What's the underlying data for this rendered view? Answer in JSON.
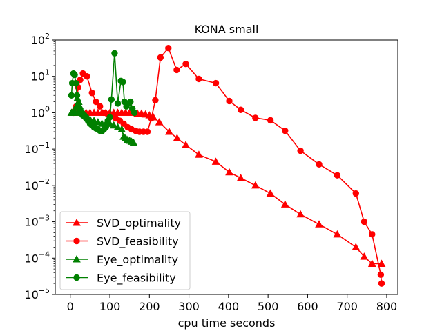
{
  "chart_data": {
    "type": "line",
    "title": "KONA small",
    "xlabel": "cpu time seconds",
    "ylabel": "",
    "yscale": "log",
    "xlim": [
      -38,
      828
    ],
    "ylim": [
      1e-05,
      100
    ],
    "xticks": [
      0,
      100,
      200,
      300,
      400,
      500,
      600,
      700,
      800
    ],
    "xtick_labels": [
      "0",
      "100",
      "200",
      "300",
      "400",
      "500",
      "600",
      "700",
      "800"
    ],
    "yticks": [
      1e-05,
      0.0001,
      0.001,
      0.01,
      0.1,
      1,
      10,
      100
    ],
    "ytick_labels": [
      {
        "base": "10",
        "exp": "−5"
      },
      {
        "base": "10",
        "exp": "−4"
      },
      {
        "base": "10",
        "exp": "−3"
      },
      {
        "base": "10",
        "exp": "−2"
      },
      {
        "base": "10",
        "exp": "−1"
      },
      {
        "base": "10",
        "exp": "0"
      },
      {
        "base": "10",
        "exp": "1"
      },
      {
        "base": "10",
        "exp": "2"
      }
    ],
    "grid": false,
    "legend_position": "lower-left",
    "series": [
      {
        "name": "SVD_optimality",
        "color": "#ff0000",
        "marker": "triangle",
        "points": [
          [
            5,
            1.0
          ],
          [
            10,
            1.0
          ],
          [
            15,
            1.0
          ],
          [
            20,
            1.0
          ],
          [
            30,
            1.0
          ],
          [
            40,
            1.0
          ],
          [
            50,
            1.0
          ],
          [
            60,
            1.0
          ],
          [
            70,
            1.0
          ],
          [
            80,
            1.0
          ],
          [
            90,
            1.0
          ],
          [
            100,
            1.0
          ],
          [
            110,
            1.0
          ],
          [
            120,
            1.0
          ],
          [
            130,
            1.0
          ],
          [
            140,
            1.0
          ],
          [
            150,
            1.0
          ],
          [
            160,
            1.0
          ],
          [
            170,
            0.95
          ],
          [
            180,
            0.95
          ],
          [
            190,
            0.9
          ],
          [
            200,
            0.85
          ],
          [
            210,
            0.75
          ],
          [
            225,
            0.55
          ],
          [
            250,
            0.3
          ],
          [
            270,
            0.2
          ],
          [
            292,
            0.13
          ],
          [
            325,
            0.07
          ],
          [
            368,
            0.045
          ],
          [
            402,
            0.023
          ],
          [
            431,
            0.016
          ],
          [
            468,
            0.01
          ],
          [
            506,
            0.006
          ],
          [
            543,
            0.003
          ],
          [
            582,
            0.0016
          ],
          [
            629,
            0.00085
          ],
          [
            675,
            0.00045
          ],
          [
            722,
            0.0002
          ],
          [
            743,
            0.00011
          ],
          [
            763,
            7e-05
          ],
          [
            787,
            7e-05
          ]
        ]
      },
      {
        "name": "SVD_feasibility",
        "color": "#ff0000",
        "marker": "circle",
        "points": [
          [
            8,
            1.0
          ],
          [
            15,
            1.5
          ],
          [
            20,
            5.0
          ],
          [
            25,
            8.0
          ],
          [
            32,
            12.0
          ],
          [
            42,
            10.0
          ],
          [
            55,
            3.5
          ],
          [
            65,
            2.0
          ],
          [
            75,
            1.5
          ],
          [
            85,
            1.0
          ],
          [
            95,
            0.9
          ],
          [
            105,
            0.8
          ],
          [
            115,
            0.7
          ],
          [
            125,
            0.6
          ],
          [
            135,
            0.5
          ],
          [
            145,
            0.4
          ],
          [
            155,
            0.35
          ],
          [
            165,
            0.32
          ],
          [
            175,
            0.3
          ],
          [
            185,
            0.3
          ],
          [
            195,
            0.3
          ],
          [
            205,
            0.7
          ],
          [
            215,
            2.2
          ],
          [
            228,
            33.0
          ],
          [
            248,
            60.0
          ],
          [
            269,
            15.0
          ],
          [
            292,
            22.0
          ],
          [
            325,
            8.5
          ],
          [
            368,
            6.5
          ],
          [
            402,
            2.1
          ],
          [
            431,
            1.2
          ],
          [
            468,
            0.72
          ],
          [
            506,
            0.62
          ],
          [
            543,
            0.32
          ],
          [
            582,
            0.09
          ],
          [
            629,
            0.038
          ],
          [
            675,
            0.019
          ],
          [
            722,
            0.006
          ],
          [
            743,
            0.001
          ],
          [
            763,
            0.00045
          ],
          [
            785,
            3.5e-05
          ],
          [
            787,
            2e-05
          ]
        ]
      },
      {
        "name": "Eye_optimality",
        "color": "#008000",
        "marker": "triangle",
        "points": [
          [
            3,
            1.0
          ],
          [
            6,
            1.0
          ],
          [
            9,
            1.1
          ],
          [
            12,
            1.0
          ],
          [
            15,
            1.5
          ],
          [
            18,
            2.5
          ],
          [
            21,
            2.0
          ],
          [
            24,
            1.5
          ],
          [
            27,
            1.2
          ],
          [
            30,
            1.0
          ],
          [
            35,
            0.9
          ],
          [
            40,
            0.8
          ],
          [
            45,
            0.7
          ],
          [
            50,
            0.65
          ],
          [
            60,
            0.6
          ],
          [
            70,
            0.55
          ],
          [
            80,
            0.5
          ],
          [
            90,
            0.5
          ],
          [
            100,
            0.5
          ],
          [
            110,
            0.45
          ],
          [
            120,
            0.4
          ],
          [
            130,
            0.35
          ],
          [
            135,
            0.22
          ],
          [
            140,
            0.2
          ],
          [
            145,
            0.18
          ],
          [
            150,
            0.17
          ],
          [
            155,
            0.16
          ],
          [
            160,
            0.15
          ]
        ]
      },
      {
        "name": "Eye_feasibility",
        "color": "#008000",
        "marker": "circle",
        "points": [
          [
            3,
            3.0
          ],
          [
            5,
            6.5
          ],
          [
            8,
            12.0
          ],
          [
            11,
            11.0
          ],
          [
            14,
            6.5
          ],
          [
            17,
            3.0
          ],
          [
            20,
            1.5
          ],
          [
            23,
            1.2
          ],
          [
            26,
            1.0
          ],
          [
            30,
            0.9
          ],
          [
            35,
            0.8
          ],
          [
            40,
            0.7
          ],
          [
            45,
            0.6
          ],
          [
            50,
            0.5
          ],
          [
            55,
            0.45
          ],
          [
            60,
            0.4
          ],
          [
            65,
            0.37
          ],
          [
            70,
            0.35
          ],
          [
            75,
            0.32
          ],
          [
            80,
            0.31
          ],
          [
            85,
            0.35
          ],
          [
            90,
            0.4
          ],
          [
            95,
            0.6
          ],
          [
            100,
            0.75
          ],
          [
            104,
            2.3
          ],
          [
            112,
            43.0
          ],
          [
            120,
            1.8
          ],
          [
            128,
            7.5
          ],
          [
            133,
            7.0
          ],
          [
            137,
            2.0
          ],
          [
            142,
            1.5
          ],
          [
            147,
            1.8
          ],
          [
            152,
            2.0
          ],
          [
            157,
            1.3
          ],
          [
            162,
            1.0
          ]
        ]
      }
    ]
  }
}
